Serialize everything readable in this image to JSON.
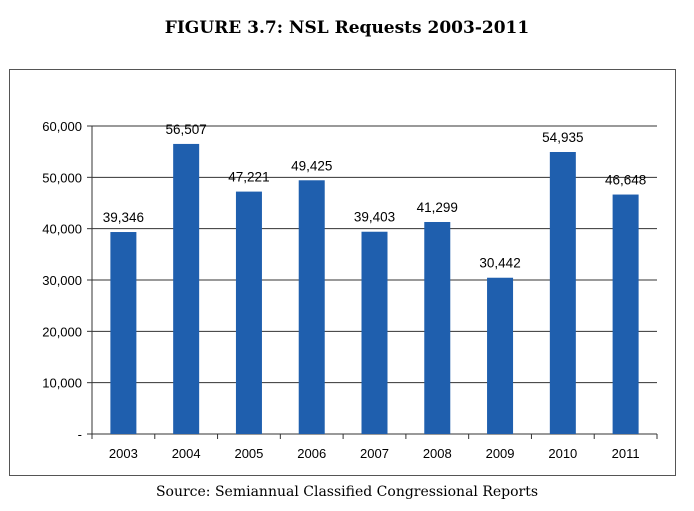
{
  "figure_title": "FIGURE 3.7:  NSL Requests 2003-2011",
  "source_note": "Source:  Semiannual Classified Congressional Reports",
  "chart_data": {
    "type": "bar",
    "title": "FIGURE 3.7:  NSL Requests 2003-2011",
    "xlabel": "",
    "ylabel": "",
    "categories": [
      "2003",
      "2004",
      "2005",
      "2006",
      "2007",
      "2008",
      "2009",
      "2010",
      "2011"
    ],
    "values": [
      39346,
      56507,
      47221,
      49425,
      39403,
      41299,
      30442,
      54935,
      46648
    ],
    "data_labels": [
      "39,346",
      "56,507",
      "47,221",
      "49,425",
      "39,403",
      "41,299",
      "30,442",
      "54,935",
      "46,648"
    ],
    "ylim": [
      0,
      60000
    ],
    "y_ticks": [
      0,
      10000,
      20000,
      30000,
      40000,
      50000,
      60000
    ],
    "y_tick_labels": [
      "-",
      "10,000",
      "20,000",
      "30,000",
      "40,000",
      "50,000",
      "60,000"
    ],
    "grid": true,
    "legend": "none",
    "bar_color": "#1f5fae"
  }
}
